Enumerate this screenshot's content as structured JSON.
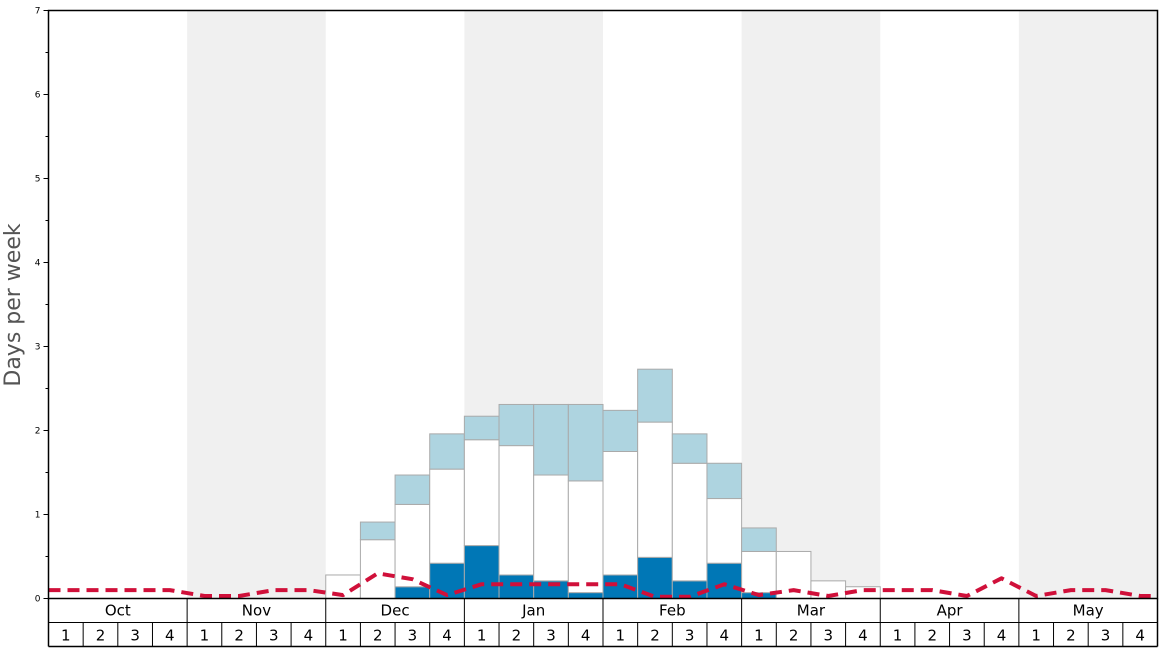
{
  "chart_data": {
    "type": "bar",
    "ylabel": "Days per week",
    "xlabel": "",
    "title": "",
    "ylim": [
      0,
      7
    ],
    "yticks": [
      0,
      1,
      2,
      3,
      4,
      5,
      6,
      7
    ],
    "months": [
      "Oct",
      "Nov",
      "Dec",
      "Jan",
      "Feb",
      "Mar",
      "Apr",
      "May"
    ],
    "weeks_per_month": [
      "1",
      "2",
      "3",
      "4"
    ],
    "colors": {
      "bottom_series": "#0077b6",
      "middle_series": "#ffffff",
      "top_series": "#aed4e0",
      "bar_edge": "#aaaaaa",
      "line_series": "#d0103a",
      "shade_band": "#f0f0f0"
    },
    "series": [
      {
        "values": [
          0,
          0,
          0,
          0,
          0,
          0,
          0,
          0,
          0,
          0,
          0.14,
          0.42,
          0.63,
          0.28,
          0.21,
          0.07,
          0.28,
          0.49,
          0.21,
          0.42,
          0.07,
          0,
          0,
          0,
          0,
          0,
          0,
          0,
          0,
          0,
          0,
          0
        ]
      },
      {
        "values": [
          0,
          0,
          0,
          0,
          0,
          0,
          0,
          0,
          0.28,
          0.7,
          0.98,
          1.12,
          1.26,
          1.54,
          1.26,
          1.33,
          1.47,
          1.61,
          1.4,
          0.77,
          0.49,
          0.56,
          0.21,
          0.14,
          0,
          0,
          0,
          0,
          0,
          0,
          0,
          0
        ]
      },
      {
        "values": [
          0,
          0,
          0,
          0,
          0,
          0,
          0,
          0,
          0,
          0.21,
          0.35,
          0.42,
          0.28,
          0.49,
          0.84,
          0.91,
          0.49,
          0.63,
          0.35,
          0.42,
          0.28,
          0,
          0,
          0,
          0,
          0,
          0,
          0,
          0,
          0,
          0,
          0
        ]
      },
      {
        "type": "line",
        "style": "dashed",
        "values": [
          0.1,
          0.1,
          0.1,
          0.1,
          0.03,
          0.03,
          0.1,
          0.1,
          0.04,
          0.3,
          0.23,
          0.04,
          0.17,
          0.17,
          0.17,
          0.17,
          0.17,
          0.02,
          0.02,
          0.17,
          0.04,
          0.1,
          0.03,
          0.1,
          0.1,
          0.1,
          0.03,
          0.24,
          0.03,
          0.1,
          0.1,
          0.03
        ]
      }
    ]
  }
}
